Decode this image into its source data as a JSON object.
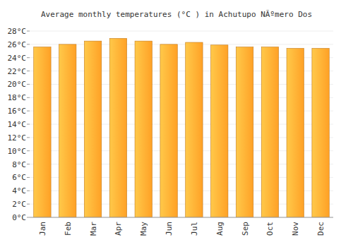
{
  "chart_data": {
    "type": "bar",
    "title": "Average monthly temperatures (°C ) in Achutupo NÃºmero Dos",
    "categories": [
      "Jan",
      "Feb",
      "Mar",
      "Apr",
      "May",
      "Jun",
      "Jul",
      "Aug",
      "Sep",
      "Oct",
      "Nov",
      "Dec"
    ],
    "values": [
      25.6,
      26,
      26.5,
      26.9,
      26.5,
      26,
      26.3,
      25.9,
      25.6,
      25.6,
      25.4,
      25.4
    ],
    "color": "#ffa126",
    "ylim": [
      0,
      28
    ],
    "yticks": [
      {
        "value": 0,
        "label": "0°C"
      },
      {
        "value": 2,
        "label": "2°C"
      },
      {
        "value": 4,
        "label": "4°C"
      },
      {
        "value": 6,
        "label": "6°C"
      },
      {
        "value": 8,
        "label": "8°C"
      },
      {
        "value": 10,
        "label": "10°C"
      },
      {
        "value": 12,
        "label": "12°C"
      },
      {
        "value": 14,
        "label": "14°C"
      },
      {
        "value": 16,
        "label": "16°C"
      },
      {
        "value": 18,
        "label": "18°C"
      },
      {
        "value": 20,
        "label": "20°C"
      },
      {
        "value": 22,
        "label": "22°C"
      },
      {
        "value": 24,
        "label": "24°C"
      },
      {
        "value": 26,
        "label": "26°C"
      },
      {
        "value": 28,
        "label": "28°C"
      }
    ],
    "grid": true
  }
}
